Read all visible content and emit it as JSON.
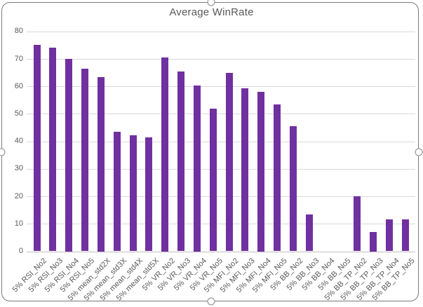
{
  "chart_data": {
    "type": "bar",
    "title": "Average WinRate",
    "categories": [
      "5% RSI_No2",
      "5% RSI_No3",
      "5% RSI_No4",
      "5% RSI_No5",
      "5% mean_std2X",
      "5% mean_std3X",
      "5% mean_std4X",
      "5% mean_std5X",
      "5% VR_No2",
      "5% VR_No3",
      "5% VR_No4",
      "5% VR_No5",
      "5% MFI_No2",
      "5% MFI_No3",
      "5% MFI_No4",
      "5% MFI_No5",
      "5% BB_No2",
      "5% BB_No3",
      "5% BB_No4",
      "5% BB_No5",
      "5% BB_TP_No2",
      "5% BB_TP_No3",
      "5% BB_TP_No4",
      "5% BB_TP_No5"
    ],
    "values": [
      75,
      74,
      70,
      66.5,
      63.5,
      43.5,
      42.3,
      41.5,
      70.5,
      65.5,
      60.3,
      52,
      65,
      59.3,
      58,
      53.5,
      45.5,
      13.5,
      0,
      0,
      20,
      7,
      11.5,
      11.5
    ],
    "xlabel": "",
    "ylabel": "",
    "ylim": [
      0,
      80
    ],
    "yticks": [
      0,
      10,
      20,
      30,
      40,
      50,
      60,
      70,
      80
    ],
    "grid": true,
    "legend": false,
    "bar_color": "#7030A0",
    "gridline_color": "#d9d9d9",
    "axis_text_color": "#595959",
    "title_color": "#595959"
  },
  "selection": {
    "border_color": "#7a7a7a",
    "handles": [
      "top-center",
      "right-middle",
      "bottom-center",
      "left-middle"
    ]
  }
}
